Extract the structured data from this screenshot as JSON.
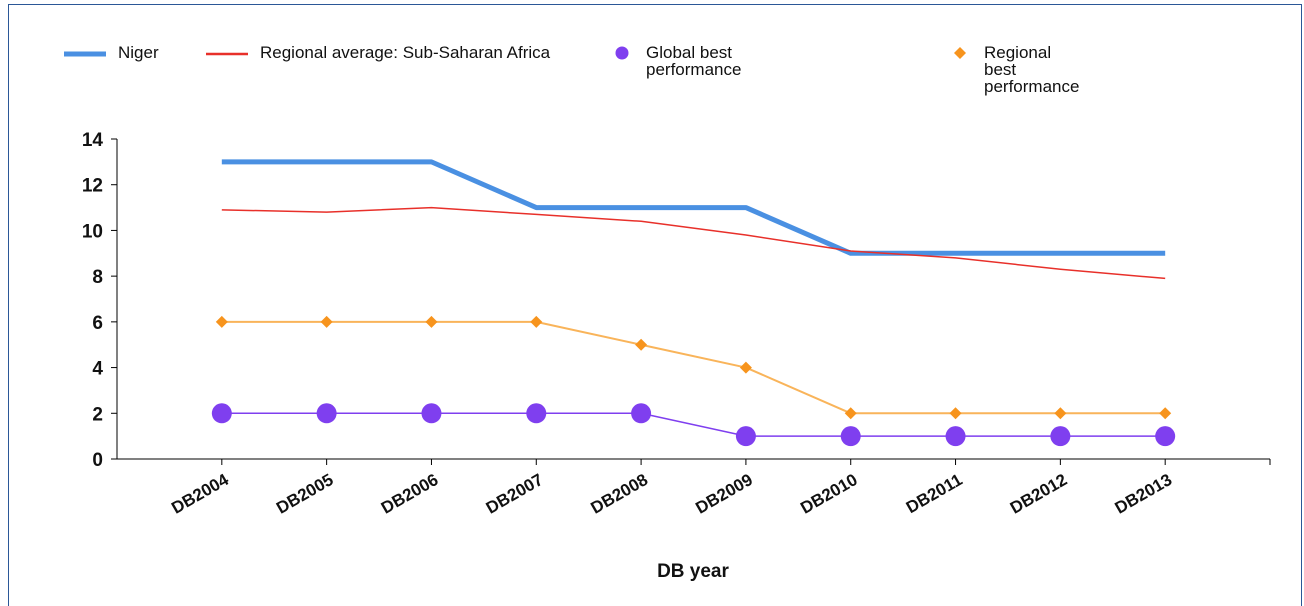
{
  "chart_data": {
    "type": "line",
    "categories": [
      "DB2004",
      "DB2005",
      "DB2006",
      "DB2007",
      "DB2008",
      "DB2009",
      "DB2010",
      "DB2011",
      "DB2012",
      "DB2013"
    ],
    "series": [
      {
        "name": "Niger",
        "color": "#4a90e2",
        "values": [
          13,
          13,
          13,
          11,
          11,
          11,
          9,
          9,
          9,
          9
        ]
      },
      {
        "name": "Regional average: Sub-Saharan Africa",
        "color": "#e8302a",
        "values": [
          10.9,
          10.8,
          11.0,
          10.7,
          10.4,
          9.8,
          9.1,
          8.8,
          8.3,
          7.9
        ]
      },
      {
        "name": "Global best performance",
        "color": "#7f3fef",
        "values": [
          2,
          2,
          2,
          2,
          2,
          1,
          1,
          1,
          1,
          1
        ]
      },
      {
        "name": "Regional best performance",
        "color": "#f7941d",
        "values": [
          6,
          6,
          6,
          6,
          5,
          4,
          2,
          2,
          2,
          2
        ]
      }
    ],
    "xlabel": "DB year",
    "ylim": [
      0,
      14
    ],
    "yticks": [
      0,
      2,
      4,
      6,
      8,
      10,
      12,
      14
    ]
  }
}
